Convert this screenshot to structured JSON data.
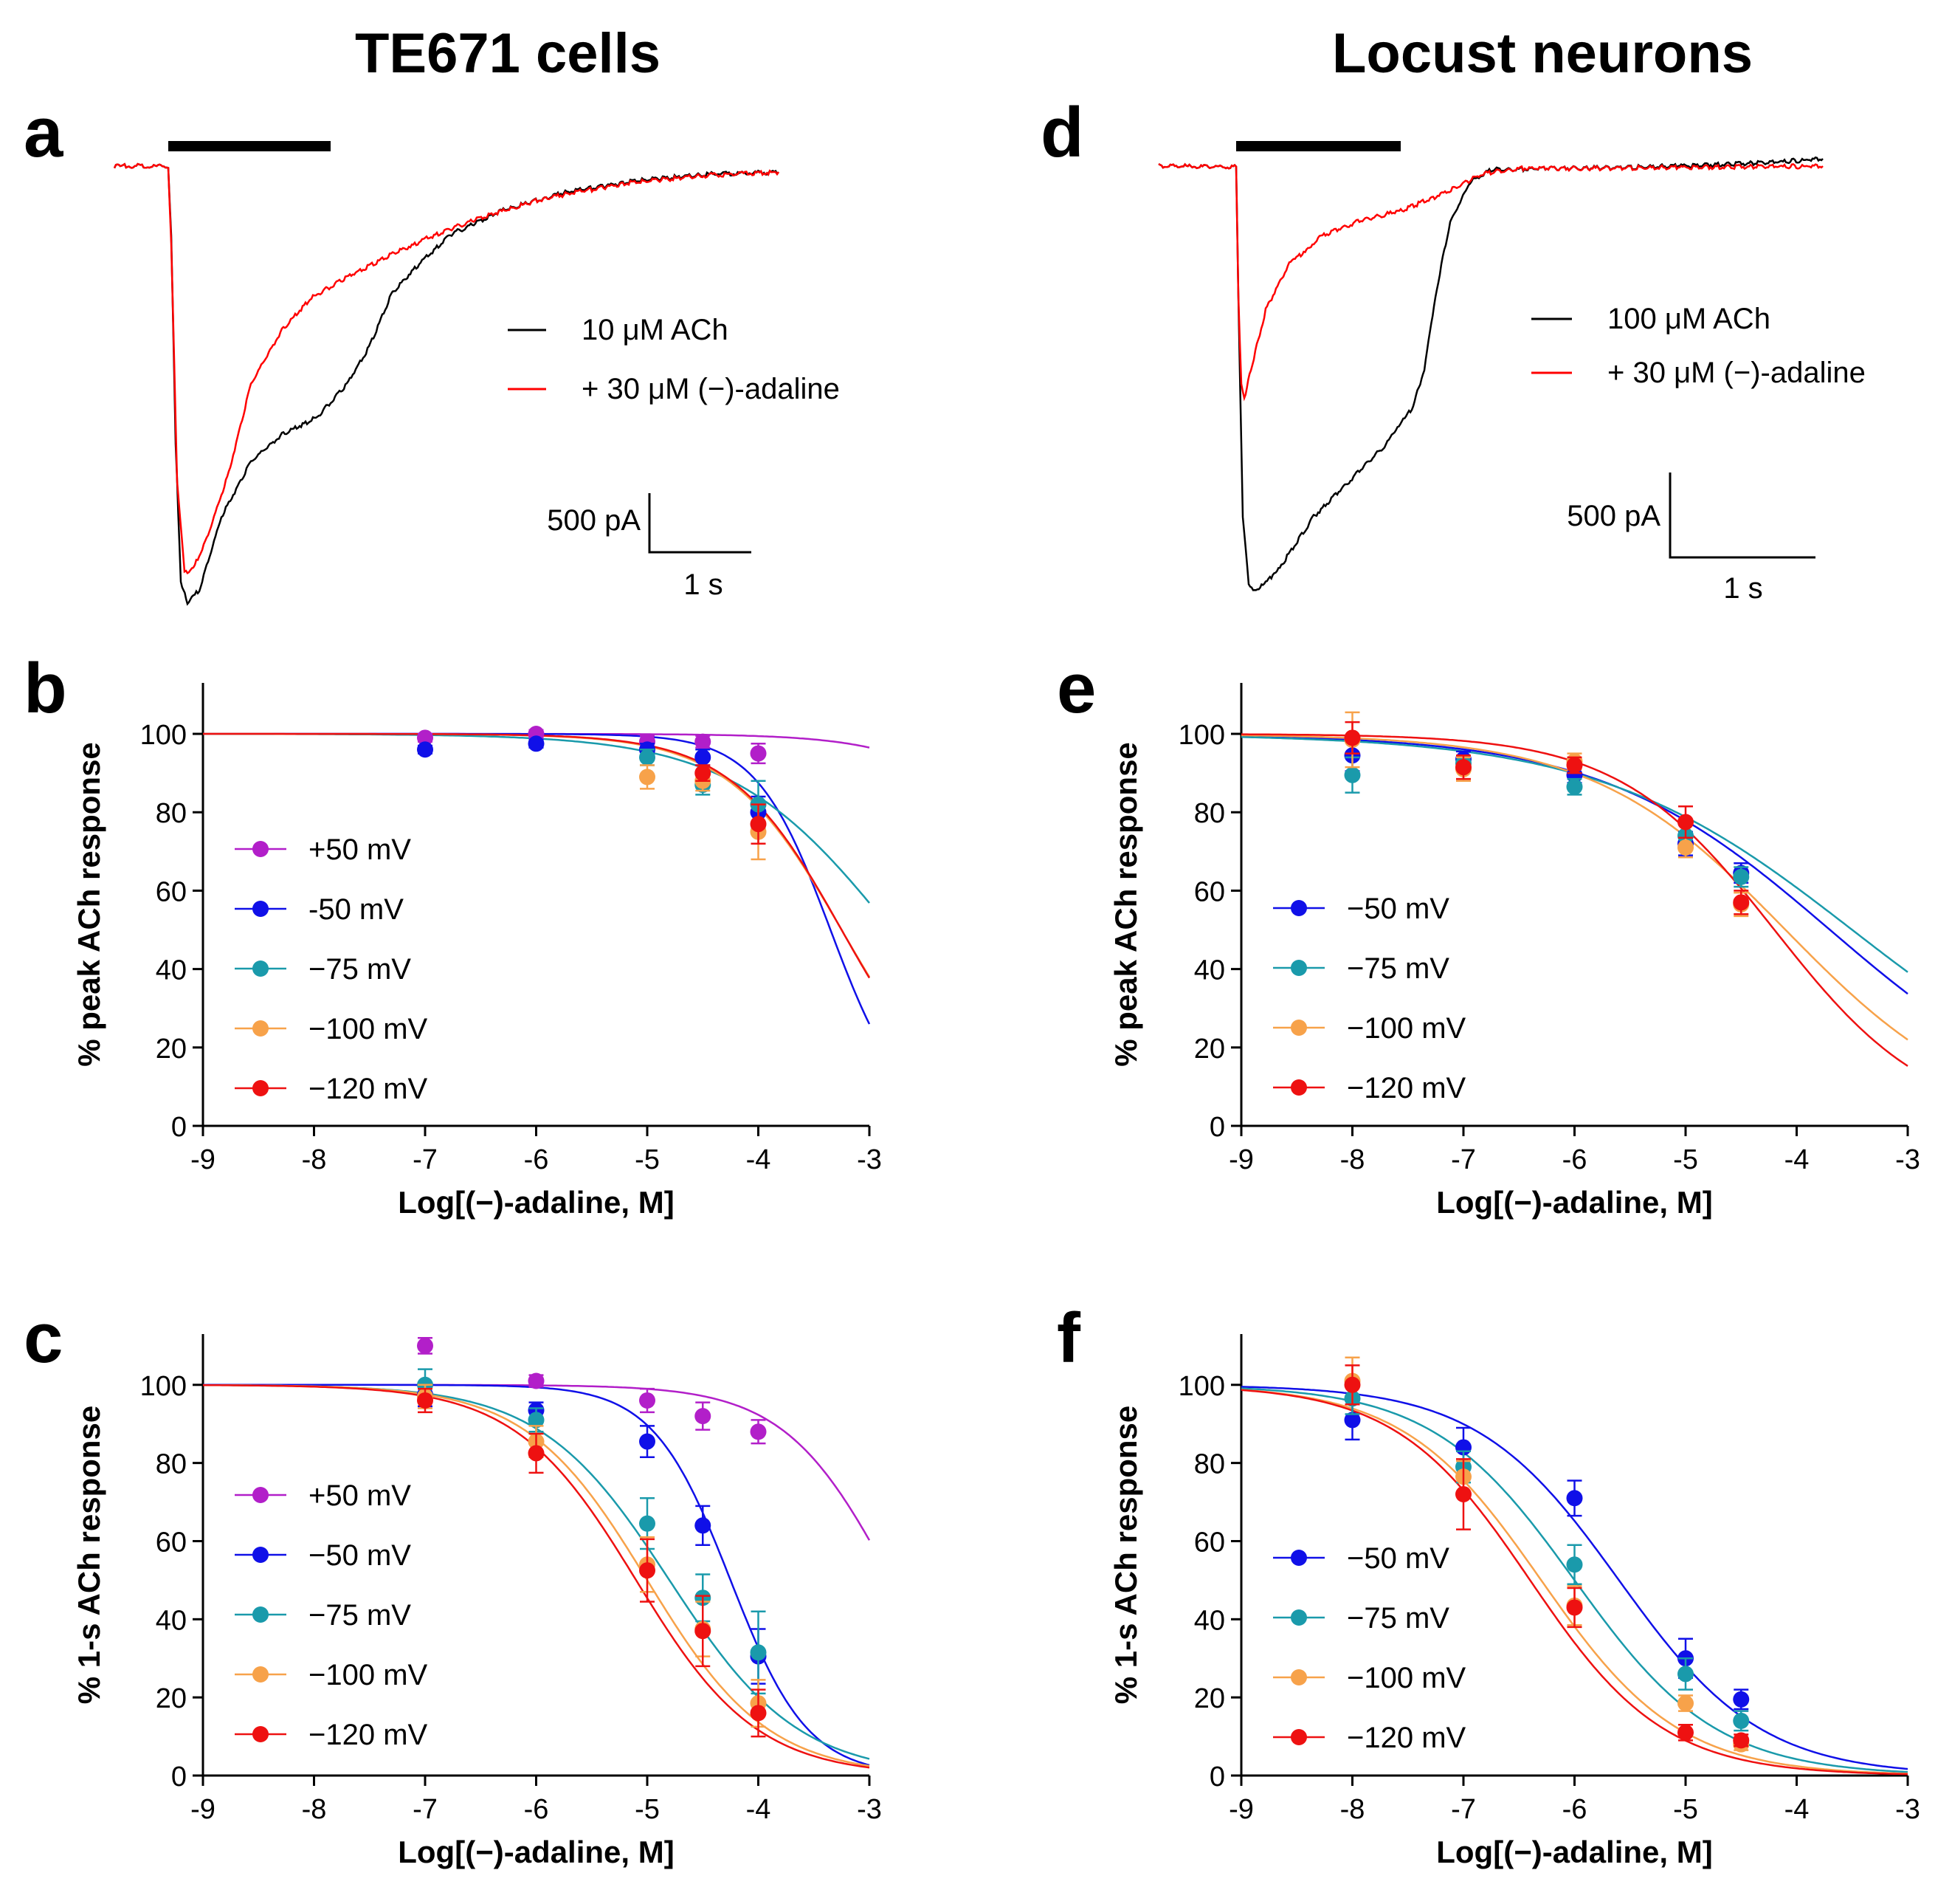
{
  "column_titles": [
    "TE671 cells",
    "Locust neurons"
  ],
  "trace_panels": [
    {
      "label": "a",
      "legend": [
        "10 μM ACh",
        "+ 30 μM (−)-adaline"
      ],
      "scale_y": "500 pA",
      "scale_x": "1 s",
      "colors": [
        "#000000",
        "#ff0000"
      ]
    },
    {
      "label": "d",
      "legend": [
        "100 μM ACh",
        "+ 30 μM (−)-adaline"
      ],
      "scale_y": "500 pA",
      "scale_x": "1 s",
      "colors": [
        "#000000",
        "#ff0000"
      ]
    }
  ],
  "chart_data": [
    {
      "label": "b",
      "type": "scatter",
      "xlabel": "Log[(−)-adaline, M]",
      "ylabel": "% peak ACh response",
      "xlim": [
        -9,
        -3
      ],
      "ylim": [
        0,
        113
      ],
      "xticks": [
        -9,
        -8,
        -7,
        -6,
        -5,
        -4,
        -3
      ],
      "yticks": [
        0,
        20,
        40,
        60,
        80,
        100
      ],
      "series": [
        {
          "name": "+50 mV",
          "color": "#b21fc9",
          "ic50log": -1.2,
          "hill": 0.8,
          "points": [
            [
              -7,
              99,
              1
            ],
            [
              -6,
              100,
              1
            ],
            [
              -5,
              98,
              1.5
            ],
            [
              -4.5,
              98,
              1.5
            ],
            [
              -4,
              95,
              2.5
            ]
          ]
        },
        {
          "name": "-50 mV",
          "color": "#1010e8",
          "ic50log": -3.35,
          "hill": 1.3,
          "points": [
            [
              -7,
              96,
              1
            ],
            [
              -6,
              97.5,
              1
            ],
            [
              -5,
              96,
              1.5
            ],
            [
              -4.5,
              94,
              2
            ],
            [
              -4,
              80,
              4
            ]
          ]
        },
        {
          "name": "−75 mV",
          "color": "#1a9aab",
          "ic50log": -2.8,
          "hill": 0.6,
          "points": [
            [
              -5,
              94,
              2
            ],
            [
              -4.5,
              87,
              2.5
            ],
            [
              -4,
              82,
              6
            ]
          ]
        },
        {
          "name": "−100 mV",
          "color": "#f7a24a",
          "ic50log": -3.25,
          "hill": 0.85,
          "points": [
            [
              -5,
              89,
              3
            ],
            [
              -4.5,
              88,
              2.5
            ],
            [
              -4,
              75,
              7
            ]
          ]
        },
        {
          "name": "−120 mV",
          "color": "#ee1111",
          "ic50log": -3.25,
          "hill": 0.87,
          "points": [
            [
              -4.5,
              90,
              2
            ],
            [
              -4,
              77,
              5
            ]
          ]
        }
      ]
    },
    {
      "label": "c",
      "type": "scatter",
      "xlabel": "Log[(−)-adaline, M]",
      "ylabel": "% 1-s ACh response",
      "xlim": [
        -9,
        -3
      ],
      "ylim": [
        0,
        113
      ],
      "xticks": [
        -9,
        -8,
        -7,
        -6,
        -5,
        -4,
        -3
      ],
      "yticks": [
        0,
        20,
        40,
        60,
        80,
        100
      ],
      "series": [
        {
          "name": "+50 mV",
          "color": "#b21fc9",
          "ic50log": -2.8,
          "hill": 0.9,
          "points": [
            [
              -7,
              110,
              2
            ],
            [
              -6,
              101,
              1.5
            ],
            [
              -5,
              96,
              3
            ],
            [
              -4.5,
              92,
              3.5
            ],
            [
              -4,
              88,
              3
            ]
          ]
        },
        {
          "name": "−50 mV",
          "color": "#1010e8",
          "ic50log": -4.25,
          "hill": 1.25,
          "points": [
            [
              -7,
              97.5,
              3
            ],
            [
              -6,
              93.5,
              2
            ],
            [
              -5,
              85.5,
              4
            ],
            [
              -4.5,
              64,
              5
            ],
            [
              -4,
              30.5,
              7
            ]
          ]
        },
        {
          "name": "−75 mV",
          "color": "#1a9aab",
          "ic50log": -4.8,
          "hill": 0.75,
          "points": [
            [
              -7,
              100,
              4
            ],
            [
              -6,
              91,
              3
            ],
            [
              -5,
              64.5,
              6.5
            ],
            [
              -4.5,
              45.5,
              6
            ],
            [
              -4,
              31.5,
              10.5
            ]
          ]
        },
        {
          "name": "−100 mV",
          "color": "#f7a24a",
          "ic50log": -5.0,
          "hill": 0.8,
          "points": [
            [
              -7,
              97,
              3
            ],
            [
              -6,
              85.5,
              4
            ],
            [
              -5,
              54,
              7
            ],
            [
              -4.5,
              37.5,
              7
            ],
            [
              -4,
              18.5,
              6
            ]
          ]
        },
        {
          "name": "−120 mV",
          "color": "#ee1111",
          "ic50log": -5.1,
          "hill": 0.8,
          "points": [
            [
              -7,
              96,
              3
            ],
            [
              -6,
              82.5,
              5
            ],
            [
              -5,
              52.5,
              8
            ],
            [
              -4.5,
              37,
              9
            ],
            [
              -4,
              16,
              6
            ]
          ]
        }
      ]
    },
    {
      "label": "e",
      "type": "scatter",
      "xlabel": "Log[(−)-adaline, M]",
      "ylabel": "% peak ACh response",
      "xlim": [
        -9,
        -3
      ],
      "ylim": [
        0,
        113
      ],
      "xticks": [
        -9,
        -8,
        -7,
        -6,
        -5,
        -4,
        -3
      ],
      "yticks": [
        0,
        20,
        40,
        60,
        80,
        100
      ],
      "series": [
        {
          "name": "−50 mV",
          "color": "#1010e8",
          "ic50log": -3.7,
          "hill": 0.42,
          "points": [
            [
              -8,
              94.5,
              4
            ],
            [
              -7,
              93.5,
              2
            ],
            [
              -6,
              89.5,
              2
            ],
            [
              -5,
              72,
              3
            ],
            [
              -4.5,
              64.5,
              2.5
            ]
          ]
        },
        {
          "name": "−75 mV",
          "color": "#1a9aab",
          "ic50log": -3.5,
          "hill": 0.38,
          "points": [
            [
              -8,
              89.5,
              4.5
            ],
            [
              -7,
              92.5,
              2
            ],
            [
              -6,
              86.5,
              2
            ],
            [
              -5,
              74,
              3
            ],
            [
              -4.5,
              63.5,
              2.5
            ]
          ]
        },
        {
          "name": "−100 mV",
          "color": "#f7a24a",
          "ic50log": -4.1,
          "hill": 0.5,
          "points": [
            [
              -8,
              98.5,
              7
            ],
            [
              -7,
              91,
              3
            ],
            [
              -6,
              93,
              2
            ],
            [
              -5,
              71,
              2.5
            ],
            [
              -4.5,
              56.5,
              3
            ]
          ]
        },
        {
          "name": "−120 mV",
          "color": "#ee1111",
          "ic50log": -4.2,
          "hill": 0.62,
          "points": [
            [
              -8,
              99,
              4
            ],
            [
              -7,
              91.5,
              3
            ],
            [
              -6,
              92,
              2
            ],
            [
              -5,
              77.5,
              4
            ],
            [
              -4.5,
              57,
              3
            ]
          ]
        }
      ]
    },
    {
      "label": "f",
      "type": "scatter",
      "xlabel": "Log[(−)-adaline, M]",
      "ylabel": "% 1-s ACh response",
      "xlim": [
        -9,
        -3
      ],
      "ylim": [
        0,
        113
      ],
      "xticks": [
        -9,
        -8,
        -7,
        -6,
        -5,
        -4,
        -3
      ],
      "yticks": [
        0,
        20,
        40,
        60,
        80,
        100
      ],
      "series": [
        {
          "name": "−50 mV",
          "color": "#1010e8",
          "ic50log": -5.6,
          "hill": 0.68,
          "points": [
            [
              -8,
              91,
              5
            ],
            [
              -7,
              84,
              5
            ],
            [
              -6,
              71,
              4.5
            ],
            [
              -5,
              30,
              5
            ],
            [
              -4.5,
              19.5,
              2.5
            ]
          ]
        },
        {
          "name": "−75 mV",
          "color": "#1a9aab",
          "ic50log": -6.0,
          "hill": 0.68,
          "points": [
            [
              -8,
              96.5,
              4
            ],
            [
              -7,
              79,
              4
            ],
            [
              -6,
              54,
              5
            ],
            [
              -5,
              26,
              4
            ],
            [
              -4.5,
              14,
              2.5
            ]
          ]
        },
        {
          "name": "−100 mV",
          "color": "#f7a24a",
          "ic50log": -6.3,
          "hill": 0.7,
          "points": [
            [
              -8,
              101,
              6
            ],
            [
              -7,
              76.5,
              4
            ],
            [
              -6,
              43.5,
              5
            ],
            [
              -5,
              18.5,
              2
            ],
            [
              -4.5,
              8,
              1.5
            ]
          ]
        },
        {
          "name": "−120 mV",
          "color": "#ee1111",
          "ic50log": -6.4,
          "hill": 0.72,
          "points": [
            [
              -8,
              100,
              5
            ],
            [
              -7,
              72,
              9
            ],
            [
              -6,
              43,
              5
            ],
            [
              -5,
              11,
              2
            ],
            [
              -4.5,
              9,
              1.5
            ]
          ]
        }
      ]
    }
  ]
}
